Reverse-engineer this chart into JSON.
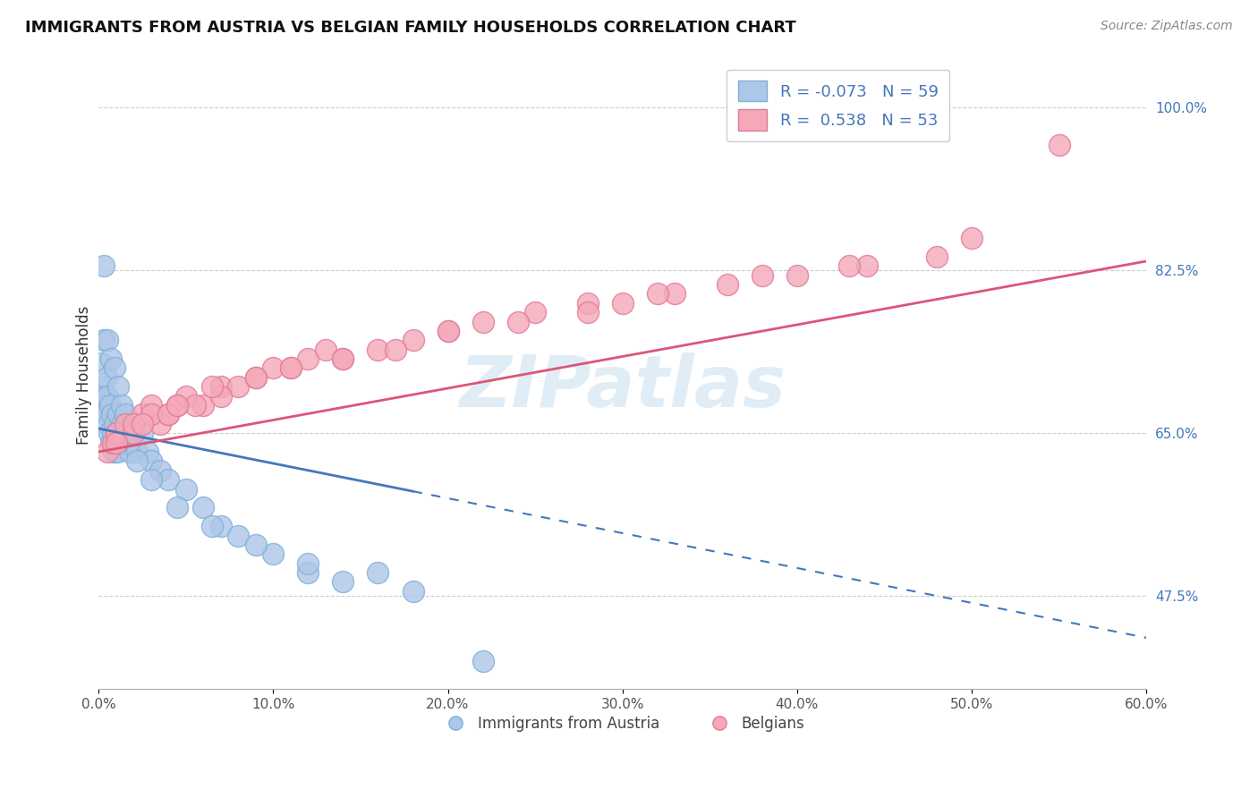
{
  "title": "IMMIGRANTS FROM AUSTRIA VS BELGIAN FAMILY HOUSEHOLDS CORRELATION CHART",
  "source": "Source: ZipAtlas.com",
  "ylabel": "Family Households",
  "legend_xlabel_blue": "Immigrants from Austria",
  "legend_xlabel_pink": "Belgians",
  "xlim": [
    0.0,
    60.0
  ],
  "ylim": [
    37.5,
    105.0
  ],
  "yticks": [
    47.5,
    65.0,
    82.5,
    100.0
  ],
  "xticks": [
    0.0,
    10.0,
    20.0,
    30.0,
    40.0,
    50.0,
    60.0
  ],
  "blue_R": -0.073,
  "blue_N": 59,
  "pink_R": 0.538,
  "pink_N": 53,
  "blue_color": "#aec6e8",
  "pink_color": "#f4a8b8",
  "blue_edge": "#7ab0d8",
  "pink_edge": "#e07898",
  "line_blue_color": "#4477bb",
  "line_pink_color": "#dd5577",
  "watermark": "ZIPatlas",
  "blue_line_x0": 0.0,
  "blue_line_y0": 65.5,
  "blue_line_x1": 60.0,
  "blue_line_y1": 43.0,
  "blue_solid_x1": 18.0,
  "pink_line_x0": 0.0,
  "pink_line_y0": 63.0,
  "pink_line_x1": 60.0,
  "pink_line_y1": 83.5,
  "blue_scatter_x": [
    0.15,
    0.2,
    0.25,
    0.3,
    0.35,
    0.4,
    0.45,
    0.5,
    0.55,
    0.6,
    0.65,
    0.7,
    0.75,
    0.8,
    0.85,
    0.9,
    0.95,
    1.0,
    1.05,
    1.1,
    1.15,
    1.2,
    1.3,
    1.4,
    1.5,
    1.6,
    1.7,
    1.8,
    2.0,
    2.2,
    2.5,
    2.8,
    3.0,
    3.5,
    4.0,
    5.0,
    6.0,
    7.0,
    8.0,
    10.0,
    12.0,
    14.0,
    18.0,
    0.3,
    0.5,
    0.7,
    0.9,
    1.1,
    1.3,
    1.5,
    1.8,
    2.2,
    3.0,
    4.5,
    6.5,
    9.0,
    12.0,
    16.0,
    22.0
  ],
  "blue_scatter_y": [
    72.5,
    70.0,
    68.0,
    75.0,
    69.0,
    67.0,
    71.0,
    69.0,
    66.0,
    65.0,
    68.0,
    64.0,
    67.0,
    65.0,
    63.0,
    66.0,
    64.0,
    65.0,
    63.0,
    67.0,
    65.0,
    64.0,
    66.0,
    65.0,
    64.0,
    66.0,
    65.0,
    63.0,
    64.0,
    63.0,
    65.0,
    63.0,
    62.0,
    61.0,
    60.0,
    59.0,
    57.0,
    55.0,
    54.0,
    52.0,
    50.0,
    49.0,
    48.0,
    83.0,
    75.0,
    73.0,
    72.0,
    70.0,
    68.0,
    67.0,
    65.0,
    62.0,
    60.0,
    57.0,
    55.0,
    53.0,
    51.0,
    50.0,
    40.5
  ],
  "pink_scatter_x": [
    0.5,
    0.8,
    1.0,
    1.5,
    2.0,
    2.5,
    3.0,
    3.5,
    4.0,
    4.5,
    5.0,
    6.0,
    7.0,
    8.0,
    9.0,
    10.0,
    11.0,
    12.0,
    13.0,
    14.0,
    16.0,
    18.0,
    20.0,
    22.0,
    25.0,
    28.0,
    30.0,
    33.0,
    36.0,
    40.0,
    44.0,
    48.0,
    55.0,
    1.0,
    2.0,
    3.0,
    4.0,
    5.5,
    7.0,
    9.0,
    11.0,
    14.0,
    17.0,
    20.0,
    24.0,
    28.0,
    32.0,
    38.0,
    43.0,
    50.0,
    2.5,
    4.5,
    6.5
  ],
  "pink_scatter_y": [
    63.0,
    64.0,
    65.0,
    66.0,
    65.0,
    67.0,
    68.0,
    66.0,
    67.0,
    68.0,
    69.0,
    68.0,
    70.0,
    70.0,
    71.0,
    72.0,
    72.0,
    73.0,
    74.0,
    73.0,
    74.0,
    75.0,
    76.0,
    77.0,
    78.0,
    79.0,
    79.0,
    80.0,
    81.0,
    82.0,
    83.0,
    84.0,
    96.0,
    64.0,
    66.0,
    67.0,
    67.0,
    68.0,
    69.0,
    71.0,
    72.0,
    73.0,
    74.0,
    76.0,
    77.0,
    78.0,
    80.0,
    82.0,
    83.0,
    86.0,
    66.0,
    68.0,
    70.0
  ]
}
